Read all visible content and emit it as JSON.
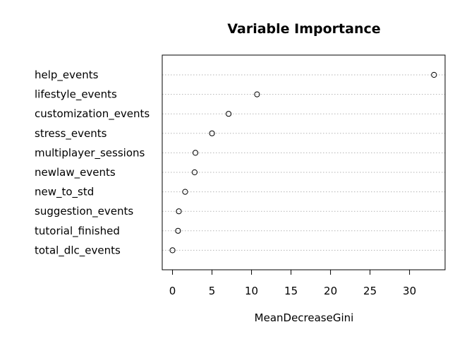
{
  "chart_data": {
    "type": "scatter",
    "title": "Variable Importance",
    "xlabel": "MeanDecreaseGini",
    "ylabel": "",
    "xlim": [
      -1.3,
      34.5
    ],
    "xticks": [
      0,
      5,
      10,
      15,
      20,
      25,
      30
    ],
    "grid": "horizontal-dotted",
    "categories": [
      "help_events",
      "lifestyle_events",
      "customization_events",
      "stress_events",
      "multiplayer_sessions",
      "newlaw_events",
      "new_to_std",
      "suggestion_events",
      "tutorial_finished",
      "total_dlc_events"
    ],
    "values": [
      33.1,
      10.7,
      7.1,
      5.0,
      2.9,
      2.8,
      1.6,
      0.8,
      0.7,
      0.0
    ]
  }
}
